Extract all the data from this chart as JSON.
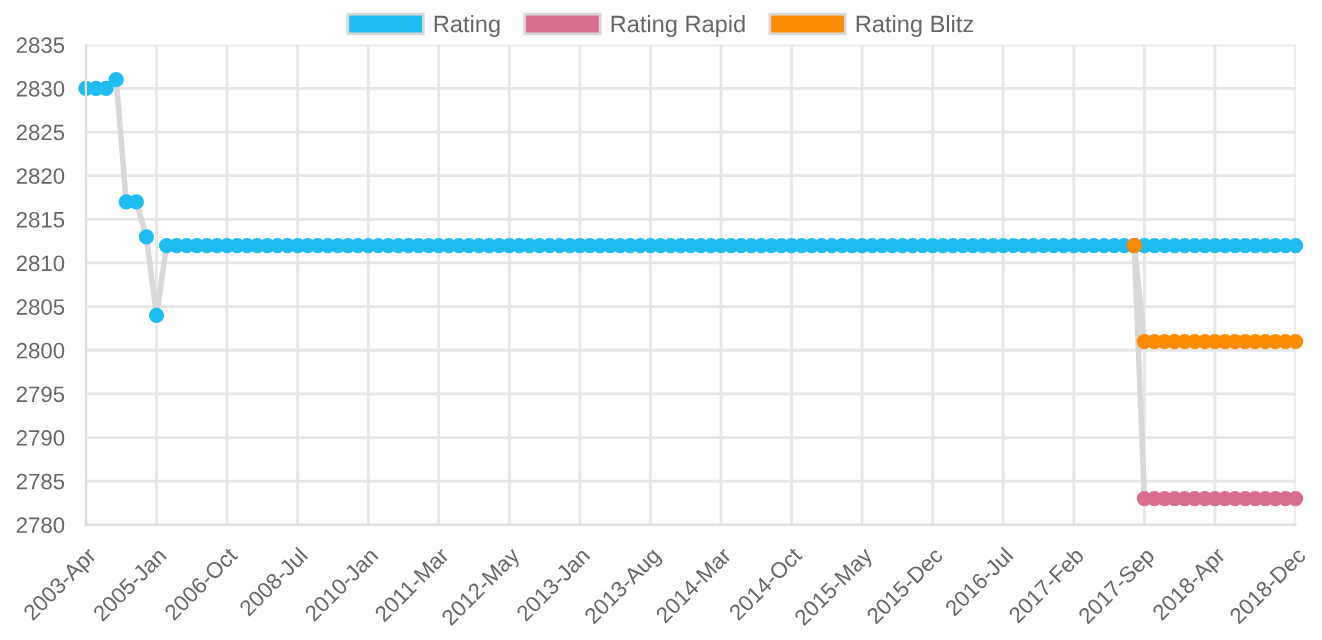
{
  "chart_data": {
    "type": "line",
    "categories": [
      "2003-Apr",
      null,
      null,
      null,
      null,
      null,
      null,
      "2005-Jan",
      null,
      null,
      null,
      null,
      null,
      null,
      "2006-Oct",
      null,
      null,
      null,
      null,
      null,
      null,
      "2008-Jul",
      null,
      null,
      null,
      null,
      null,
      null,
      "2010-Jan",
      null,
      null,
      null,
      null,
      null,
      null,
      "2011-Mar",
      null,
      null,
      null,
      null,
      null,
      null,
      "2012-May",
      null,
      null,
      null,
      null,
      null,
      null,
      "2013-Jan",
      null,
      null,
      null,
      null,
      null,
      null,
      "2013-Aug",
      null,
      null,
      null,
      null,
      null,
      null,
      "2014-Mar",
      null,
      null,
      null,
      null,
      null,
      null,
      "2014-Oct",
      null,
      null,
      null,
      null,
      null,
      null,
      "2015-May",
      null,
      null,
      null,
      null,
      null,
      null,
      "2015-Dec",
      null,
      null,
      null,
      null,
      null,
      null,
      "2016-Jul",
      null,
      null,
      null,
      null,
      null,
      null,
      "2017-Feb",
      null,
      null,
      null,
      null,
      null,
      null,
      "2017-Sep",
      null,
      null,
      null,
      null,
      null,
      null,
      "2018-Apr",
      null,
      null,
      null,
      null,
      null,
      null,
      null,
      "2018-Dec"
    ],
    "series": [
      {
        "name": "Rating",
        "color": "#1ebcf0",
        "values": [
          2830,
          2830,
          2830,
          2831,
          2817,
          2817,
          2813,
          2804,
          2812,
          2812,
          2812,
          2812,
          2812,
          2812,
          2812,
          2812,
          2812,
          2812,
          2812,
          2812,
          2812,
          2812,
          2812,
          2812,
          2812,
          2812,
          2812,
          2812,
          2812,
          2812,
          2812,
          2812,
          2812,
          2812,
          2812,
          2812,
          2812,
          2812,
          2812,
          2812,
          2812,
          2812,
          2812,
          2812,
          2812,
          2812,
          2812,
          2812,
          2812,
          2812,
          2812,
          2812,
          2812,
          2812,
          2812,
          2812,
          2812,
          2812,
          2812,
          2812,
          2812,
          2812,
          2812,
          2812,
          2812,
          2812,
          2812,
          2812,
          2812,
          2812,
          2812,
          2812,
          2812,
          2812,
          2812,
          2812,
          2812,
          2812,
          2812,
          2812,
          2812,
          2812,
          2812,
          2812,
          2812,
          2812,
          2812,
          2812,
          2812,
          2812,
          2812,
          2812,
          2812,
          2812,
          2812,
          2812,
          2812,
          2812,
          2812,
          2812,
          2812,
          2812,
          2812,
          2812,
          2812,
          2812,
          2812,
          2812,
          2812,
          2812,
          2812,
          2812,
          2812,
          2812,
          2812,
          2812,
          2812,
          2812,
          2812,
          2812,
          2812
        ]
      },
      {
        "name": "Rating Rapid",
        "color": "#d86d8e",
        "values": [
          null,
          null,
          null,
          null,
          null,
          null,
          null,
          null,
          null,
          null,
          null,
          null,
          null,
          null,
          null,
          null,
          null,
          null,
          null,
          null,
          null,
          null,
          null,
          null,
          null,
          null,
          null,
          null,
          null,
          null,
          null,
          null,
          null,
          null,
          null,
          null,
          null,
          null,
          null,
          null,
          null,
          null,
          null,
          null,
          null,
          null,
          null,
          null,
          null,
          null,
          null,
          null,
          null,
          null,
          null,
          null,
          null,
          null,
          null,
          null,
          null,
          null,
          null,
          null,
          null,
          null,
          null,
          null,
          null,
          null,
          null,
          null,
          null,
          null,
          null,
          null,
          null,
          null,
          null,
          null,
          null,
          null,
          null,
          null,
          null,
          null,
          null,
          null,
          null,
          null,
          null,
          null,
          null,
          null,
          null,
          null,
          null,
          null,
          null,
          null,
          null,
          null,
          null,
          null,
          2812,
          2783,
          2783,
          2783,
          2783,
          2783,
          2783,
          2783,
          2783,
          2783,
          2783,
          2783,
          2783,
          2783,
          2783,
          2783,
          2783
        ]
      },
      {
        "name": "Rating Blitz",
        "color": "#fb8b00",
        "values": [
          null,
          null,
          null,
          null,
          null,
          null,
          null,
          null,
          null,
          null,
          null,
          null,
          null,
          null,
          null,
          null,
          null,
          null,
          null,
          null,
          null,
          null,
          null,
          null,
          null,
          null,
          null,
          null,
          null,
          null,
          null,
          null,
          null,
          null,
          null,
          null,
          null,
          null,
          null,
          null,
          null,
          null,
          null,
          null,
          null,
          null,
          null,
          null,
          null,
          null,
          null,
          null,
          null,
          null,
          null,
          null,
          null,
          null,
          null,
          null,
          null,
          null,
          null,
          null,
          null,
          null,
          null,
          null,
          null,
          null,
          null,
          null,
          null,
          null,
          null,
          null,
          null,
          null,
          null,
          null,
          null,
          null,
          null,
          null,
          null,
          null,
          null,
          null,
          null,
          null,
          null,
          null,
          null,
          null,
          null,
          null,
          null,
          null,
          null,
          null,
          null,
          null,
          null,
          null,
          2812,
          2801,
          2801,
          2801,
          2801,
          2801,
          2801,
          2801,
          2801,
          2801,
          2801,
          2801,
          2801,
          2801,
          2801,
          2801,
          2801
        ]
      }
    ],
    "ylim": [
      2780,
      2835
    ],
    "yticks": [
      2780,
      2785,
      2790,
      2795,
      2800,
      2805,
      2810,
      2815,
      2820,
      2825,
      2830,
      2835
    ],
    "grid": true,
    "legend": "top",
    "marker": "circle",
    "line_style": "solid"
  }
}
